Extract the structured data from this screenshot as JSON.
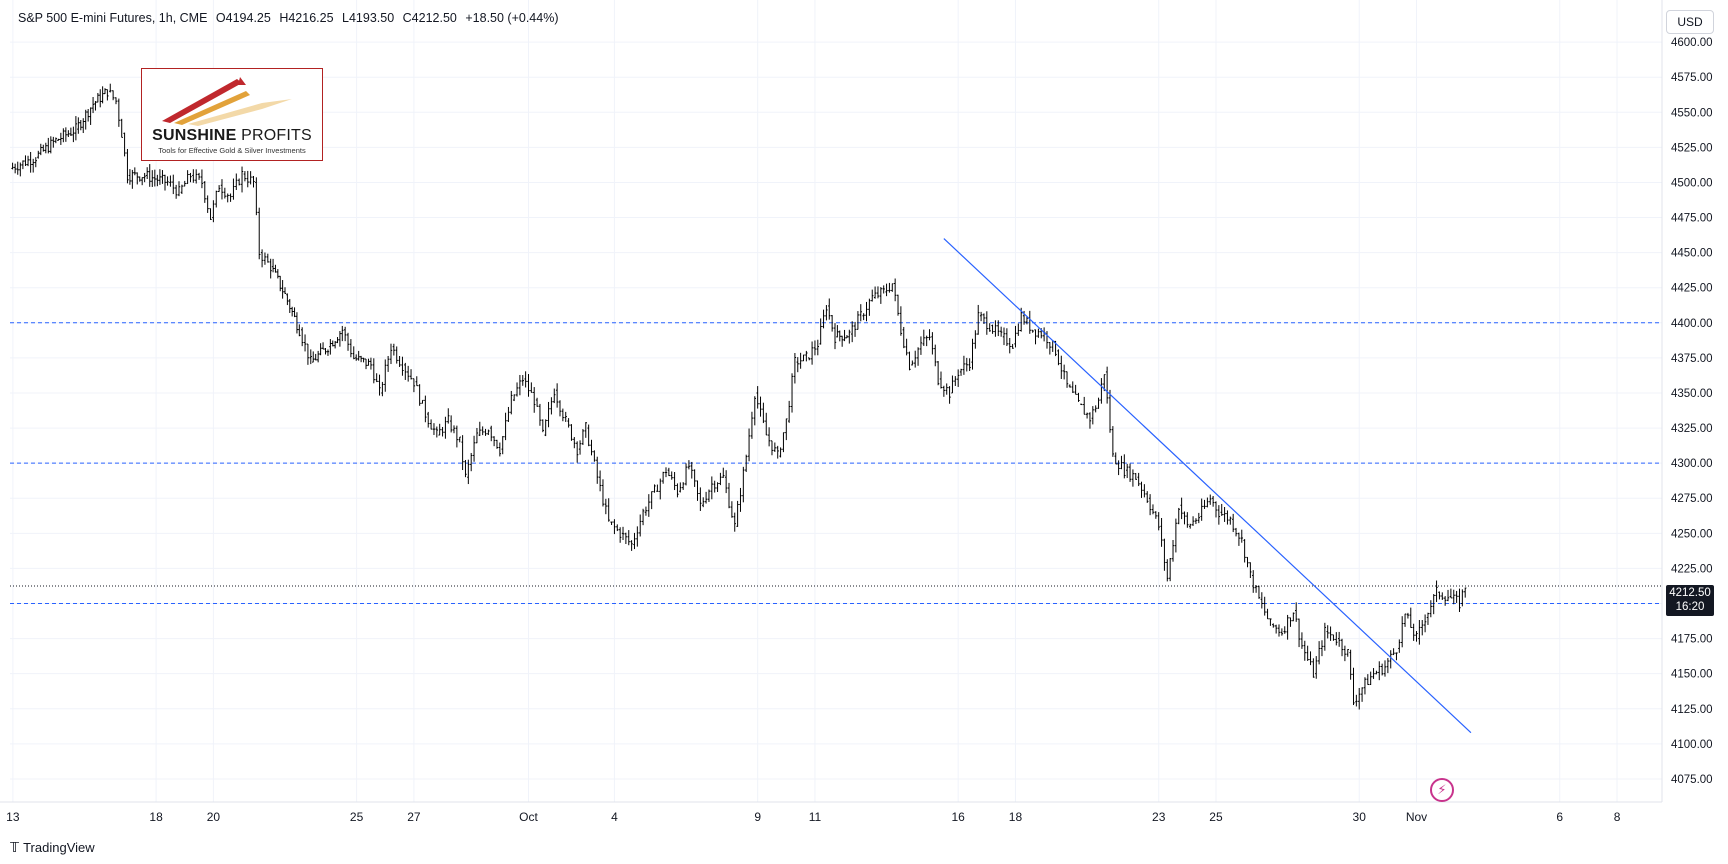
{
  "header": {
    "symbol": "S&P 500 E-mini Futures, 1h, CME",
    "open": "O4194.25",
    "high": "H4216.25",
    "low": "L4193.50",
    "close": "C4212.50",
    "change": "+18.50 (+0.44%)"
  },
  "currency_button": "USD",
  "logo": {
    "brand_bold": "SUNSHINE",
    "brand_thin": "PROFITS",
    "tagline": "Tools for Effective Gold & Silver Investments"
  },
  "footer": {
    "brand": "TradingView"
  },
  "last_price": {
    "value": "4212.50",
    "countdown": "16:20"
  },
  "colors": {
    "candle": "#000000",
    "level_line": "#2962ff",
    "trendline": "#2962ff",
    "grid": "#f0f3fa",
    "tag_bg": "#131722"
  },
  "chart_data": {
    "type": "line",
    "y_ticks": [
      4075,
      4100,
      4125,
      4150,
      4175,
      4200,
      4225,
      4250,
      4275,
      4300,
      4325,
      4350,
      4375,
      4400,
      4425,
      4450,
      4475,
      4500,
      4525,
      4550,
      4575,
      4600
    ],
    "y_tick_labels": [
      "4075.00",
      "4100.00",
      "4125.00",
      "4150.00",
      "4175.00",
      "4200.00",
      "4225.00",
      "4250.00",
      "4275.00",
      "4300.00",
      "4325.00",
      "4350.00",
      "4375.00",
      "4400.00",
      "4425.00",
      "4450.00",
      "4475.00",
      "4500.00",
      "4525.00",
      "4550.00",
      "4575.00",
      "4600.00"
    ],
    "x_ticks": [
      {
        "label": "13",
        "d": 0
      },
      {
        "label": "18",
        "d": 5
      },
      {
        "label": "20",
        "d": 7
      },
      {
        "label": "25",
        "d": 12
      },
      {
        "label": "27",
        "d": 14
      },
      {
        "label": "Oct",
        "d": 18
      },
      {
        "label": "4",
        "d": 21
      },
      {
        "label": "9",
        "d": 26
      },
      {
        "label": "11",
        "d": 28
      },
      {
        "label": "16",
        "d": 33
      },
      {
        "label": "18",
        "d": 35
      },
      {
        "label": "23",
        "d": 40
      },
      {
        "label": "25",
        "d": 42
      },
      {
        "label": "30",
        "d": 47
      },
      {
        "label": "Nov",
        "d": 49
      },
      {
        "label": "6",
        "d": 54
      },
      {
        "label": "8",
        "d": 56
      }
    ],
    "ylim": [
      4060,
      4630
    ],
    "xlim": [
      -0.1,
      57.5
    ],
    "horizontal_levels": [
      4400,
      4300,
      4200
    ],
    "last_price": 4212.5,
    "trendline": [
      {
        "d": 32.5,
        "y": 4460
      },
      {
        "d": 50.9,
        "y": 4108
      }
    ],
    "series": [
      {
        "d": -0.1,
        "y": 4510
      },
      {
        "d": 0.8,
        "y": 4518
      },
      {
        "d": 1.5,
        "y": 4530
      },
      {
        "d": 2.2,
        "y": 4538
      },
      {
        "d": 2.8,
        "y": 4556
      },
      {
        "d": 3.3,
        "y": 4565
      },
      {
        "d": 3.6,
        "y": 4558
      },
      {
        "d": 3.8,
        "y": 4535
      },
      {
        "d": 4.0,
        "y": 4505
      },
      {
        "d": 4.6,
        "y": 4505
      },
      {
        "d": 5.4,
        "y": 4500
      },
      {
        "d": 5.8,
        "y": 4493
      },
      {
        "d": 6.2,
        "y": 4505
      },
      {
        "d": 6.6,
        "y": 4500
      },
      {
        "d": 6.9,
        "y": 4475
      },
      {
        "d": 7.2,
        "y": 4498
      },
      {
        "d": 7.6,
        "y": 4490
      },
      {
        "d": 8.0,
        "y": 4506
      },
      {
        "d": 8.4,
        "y": 4500
      },
      {
        "d": 8.6,
        "y": 4450
      },
      {
        "d": 9.0,
        "y": 4440
      },
      {
        "d": 9.5,
        "y": 4420
      },
      {
        "d": 10.0,
        "y": 4395
      },
      {
        "d": 10.4,
        "y": 4372
      },
      {
        "d": 11.0,
        "y": 4383
      },
      {
        "d": 11.5,
        "y": 4395
      },
      {
        "d": 11.9,
        "y": 4375
      },
      {
        "d": 12.5,
        "y": 4370
      },
      {
        "d": 12.8,
        "y": 4350
      },
      {
        "d": 13.2,
        "y": 4383
      },
      {
        "d": 13.6,
        "y": 4370
      },
      {
        "d": 14.0,
        "y": 4358
      },
      {
        "d": 14.4,
        "y": 4335
      },
      {
        "d": 14.8,
        "y": 4320
      },
      {
        "d": 15.2,
        "y": 4330
      },
      {
        "d": 15.6,
        "y": 4315
      },
      {
        "d": 15.8,
        "y": 4290
      },
      {
        "d": 16.2,
        "y": 4320
      },
      {
        "d": 16.6,
        "y": 4325
      },
      {
        "d": 17.0,
        "y": 4310
      },
      {
        "d": 17.4,
        "y": 4345
      },
      {
        "d": 17.8,
        "y": 4360
      },
      {
        "d": 18.2,
        "y": 4345
      },
      {
        "d": 18.5,
        "y": 4320
      },
      {
        "d": 18.9,
        "y": 4352
      },
      {
        "d": 19.3,
        "y": 4330
      },
      {
        "d": 19.7,
        "y": 4310
      },
      {
        "d": 20.0,
        "y": 4325
      },
      {
        "d": 20.4,
        "y": 4290
      },
      {
        "d": 20.8,
        "y": 4258
      },
      {
        "d": 21.2,
        "y": 4250
      },
      {
        "d": 21.6,
        "y": 4242
      },
      {
        "d": 22.0,
        "y": 4265
      },
      {
        "d": 22.4,
        "y": 4280
      },
      {
        "d": 22.8,
        "y": 4295
      },
      {
        "d": 23.2,
        "y": 4280
      },
      {
        "d": 23.6,
        "y": 4298
      },
      {
        "d": 24.0,
        "y": 4270
      },
      {
        "d": 24.4,
        "y": 4285
      },
      {
        "d": 24.8,
        "y": 4290
      },
      {
        "d": 25.2,
        "y": 4255
      },
      {
        "d": 25.6,
        "y": 4305
      },
      {
        "d": 25.9,
        "y": 4350
      },
      {
        "d": 26.3,
        "y": 4320
      },
      {
        "d": 26.7,
        "y": 4305
      },
      {
        "d": 27.0,
        "y": 4330
      },
      {
        "d": 27.3,
        "y": 4372
      },
      {
        "d": 27.7,
        "y": 4375
      },
      {
        "d": 28.1,
        "y": 4385
      },
      {
        "d": 28.4,
        "y": 4412
      },
      {
        "d": 28.7,
        "y": 4390
      },
      {
        "d": 29.2,
        "y": 4392
      },
      {
        "d": 29.6,
        "y": 4405
      },
      {
        "d": 30.0,
        "y": 4418
      },
      {
        "d": 30.4,
        "y": 4422
      },
      {
        "d": 30.7,
        "y": 4428
      },
      {
        "d": 31.0,
        "y": 4395
      },
      {
        "d": 31.3,
        "y": 4370
      },
      {
        "d": 31.7,
        "y": 4385
      },
      {
        "d": 32.0,
        "y": 4390
      },
      {
        "d": 32.3,
        "y": 4360
      },
      {
        "d": 32.7,
        "y": 4350
      },
      {
        "d": 33.0,
        "y": 4365
      },
      {
        "d": 33.4,
        "y": 4372
      },
      {
        "d": 33.7,
        "y": 4405
      },
      {
        "d": 34.1,
        "y": 4398
      },
      {
        "d": 34.5,
        "y": 4390
      },
      {
        "d": 34.9,
        "y": 4385
      },
      {
        "d": 35.2,
        "y": 4405
      },
      {
        "d": 35.6,
        "y": 4395
      },
      {
        "d": 36.0,
        "y": 4392
      },
      {
        "d": 36.4,
        "y": 4380
      },
      {
        "d": 36.8,
        "y": 4355
      },
      {
        "d": 37.2,
        "y": 4342
      },
      {
        "d": 37.6,
        "y": 4332
      },
      {
        "d": 37.9,
        "y": 4345
      },
      {
        "d": 38.1,
        "y": 4365
      },
      {
        "d": 38.4,
        "y": 4305
      },
      {
        "d": 38.8,
        "y": 4295
      },
      {
        "d": 39.2,
        "y": 4290
      },
      {
        "d": 39.6,
        "y": 4275
      },
      {
        "d": 40.0,
        "y": 4255
      },
      {
        "d": 40.3,
        "y": 4218
      },
      {
        "d": 40.7,
        "y": 4270
      },
      {
        "d": 41.0,
        "y": 4255
      },
      {
        "d": 41.4,
        "y": 4262
      },
      {
        "d": 41.8,
        "y": 4275
      },
      {
        "d": 42.1,
        "y": 4265
      },
      {
        "d": 42.5,
        "y": 4260
      },
      {
        "d": 42.9,
        "y": 4245
      },
      {
        "d": 43.2,
        "y": 4220
      },
      {
        "d": 43.5,
        "y": 4203
      },
      {
        "d": 43.9,
        "y": 4185
      },
      {
        "d": 44.3,
        "y": 4180
      },
      {
        "d": 44.7,
        "y": 4195
      },
      {
        "d": 45.0,
        "y": 4170
      },
      {
        "d": 45.4,
        "y": 4150
      },
      {
        "d": 45.8,
        "y": 4180
      },
      {
        "d": 46.2,
        "y": 4175
      },
      {
        "d": 46.6,
        "y": 4165
      },
      {
        "d": 46.8,
        "y": 4130
      },
      {
        "d": 47.1,
        "y": 4140
      },
      {
        "d": 47.5,
        "y": 4150
      },
      {
        "d": 47.9,
        "y": 4155
      },
      {
        "d": 48.3,
        "y": 4168
      },
      {
        "d": 48.6,
        "y": 4192
      },
      {
        "d": 49.0,
        "y": 4175
      },
      {
        "d": 49.3,
        "y": 4190
      },
      {
        "d": 49.7,
        "y": 4208
      },
      {
        "d": 50.1,
        "y": 4205
      },
      {
        "d": 50.5,
        "y": 4200
      },
      {
        "d": 50.7,
        "y": 4212.5
      }
    ]
  }
}
